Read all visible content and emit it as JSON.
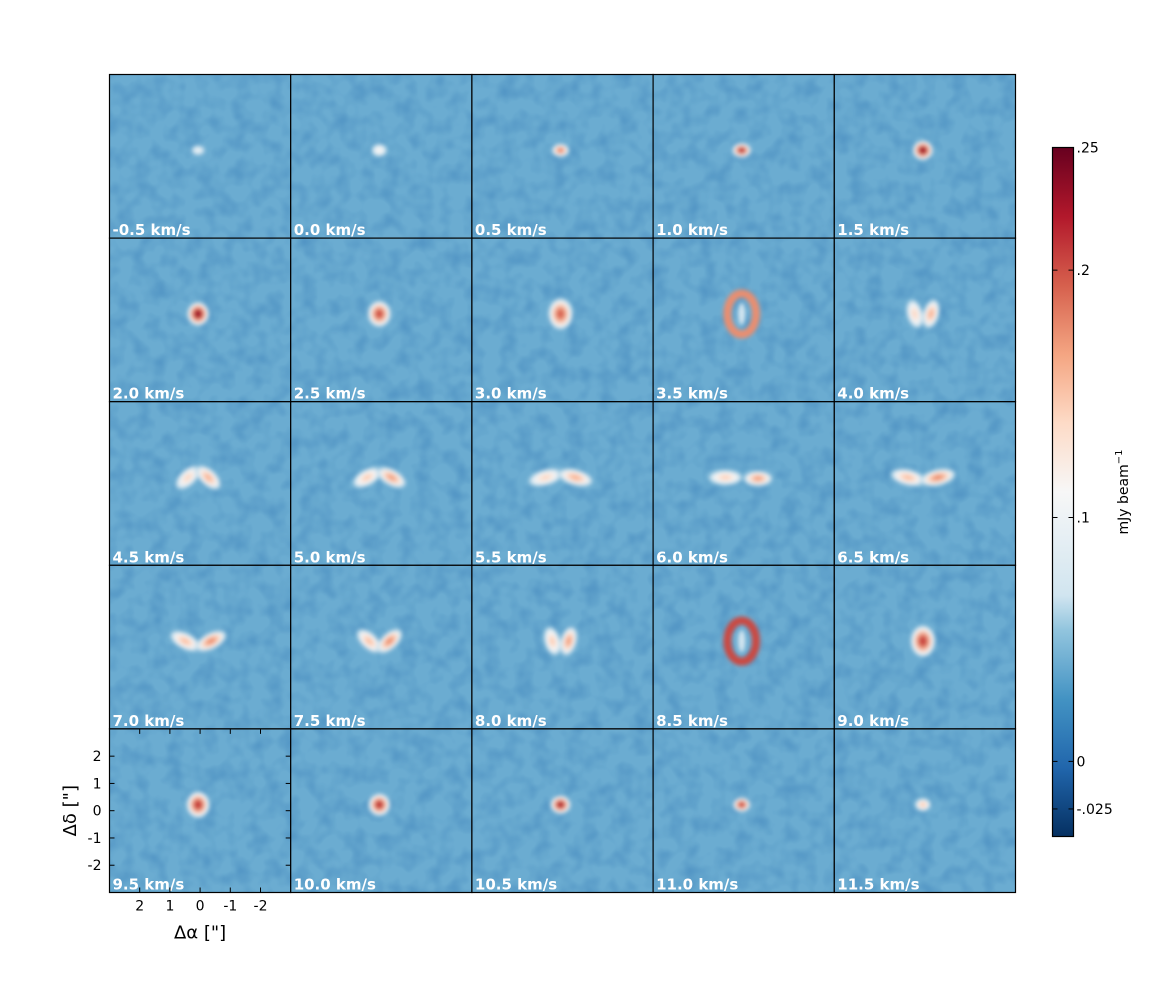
{
  "chart_data": {
    "type": "heatmap",
    "description_kind": "channel-maps",
    "grid": {
      "rows": 5,
      "cols": 5
    },
    "panels": [
      {
        "label": "-0.5 km/s",
        "velocity": -0.5,
        "shape": "blob",
        "peak": 0.09,
        "w": 0.5,
        "h": 0.4
      },
      {
        "label": "0.0 km/s",
        "velocity": 0.0,
        "shape": "blob",
        "peak": 0.11,
        "w": 0.55,
        "h": 0.5
      },
      {
        "label": "0.5 km/s",
        "velocity": 0.5,
        "shape": "blob",
        "peak": 0.19,
        "w": 0.6,
        "h": 0.5
      },
      {
        "label": "1.0 km/s",
        "velocity": 1.0,
        "shape": "blob",
        "peak": 0.23,
        "w": 0.65,
        "h": 0.55
      },
      {
        "label": "1.5 km/s",
        "velocity": 1.5,
        "shape": "blob",
        "peak": 0.245,
        "w": 0.7,
        "h": 0.75
      },
      {
        "label": "2.0 km/s",
        "velocity": 2.0,
        "shape": "blob",
        "peak": 0.245,
        "w": 0.75,
        "h": 0.9
      },
      {
        "label": "2.5 km/s",
        "velocity": 2.5,
        "shape": "blob",
        "peak": 0.21,
        "w": 0.8,
        "h": 1.0
      },
      {
        "label": "3.0 km/s",
        "velocity": 3.0,
        "shape": "blob",
        "peak": 0.2,
        "w": 0.85,
        "h": 1.2
      },
      {
        "label": "3.5 km/s",
        "velocity": 3.5,
        "shape": "ring",
        "peak": 0.17,
        "w": 0.95,
        "h": 1.5
      },
      {
        "label": "4.0 km/s",
        "velocity": 4.0,
        "shape": "arcs_v",
        "peak": 0.16,
        "w": 1.2,
        "h": 1.6
      },
      {
        "label": "4.5 km/s",
        "velocity": 4.5,
        "shape": "arcs_n",
        "peak": 0.16,
        "w": 1.5,
        "h": 1.4
      },
      {
        "label": "5.0 km/s",
        "velocity": 5.0,
        "shape": "arcs_n",
        "peak": 0.17,
        "w": 1.8,
        "h": 1.0
      },
      {
        "label": "5.5 km/s",
        "velocity": 5.5,
        "shape": "arcs_n",
        "peak": 0.16,
        "w": 2.2,
        "h": 0.6
      },
      {
        "label": "6.0 km/s",
        "velocity": 6.0,
        "shape": "bar",
        "peak": 0.17,
        "w": 2.4,
        "h": 0.3
      },
      {
        "label": "6.5 km/s",
        "velocity": 6.5,
        "shape": "arcs_u",
        "peak": 0.18,
        "w": 2.2,
        "h": 0.5
      },
      {
        "label": "7.0 km/s",
        "velocity": 7.0,
        "shape": "arcs_u",
        "peak": 0.18,
        "w": 1.9,
        "h": 1.0
      },
      {
        "label": "7.5 km/s",
        "velocity": 7.5,
        "shape": "arcs_u",
        "peak": 0.18,
        "w": 1.5,
        "h": 1.4
      },
      {
        "label": "8.0 km/s",
        "velocity": 8.0,
        "shape": "arcs_v",
        "peak": 0.17,
        "w": 1.2,
        "h": 1.6
      },
      {
        "label": "8.5 km/s",
        "velocity": 8.5,
        "shape": "ring",
        "peak": 0.2,
        "w": 0.95,
        "h": 1.5
      },
      {
        "label": "9.0 km/s",
        "velocity": 9.0,
        "shape": "blob",
        "peak": 0.215,
        "w": 0.85,
        "h": 1.2
      },
      {
        "label": "9.5 km/s",
        "velocity": 9.5,
        "shape": "blob",
        "peak": 0.22,
        "w": 0.8,
        "h": 1.0
      },
      {
        "label": "10.0 km/s",
        "velocity": 10.0,
        "shape": "blob",
        "peak": 0.225,
        "w": 0.75,
        "h": 0.85
      },
      {
        "label": "10.5 km/s",
        "velocity": 10.5,
        "shape": "blob",
        "peak": 0.235,
        "w": 0.7,
        "h": 0.7
      },
      {
        "label": "11.0 km/s",
        "velocity": 11.0,
        "shape": "blob",
        "peak": 0.22,
        "w": 0.6,
        "h": 0.55
      },
      {
        "label": "11.5 km/s",
        "velocity": 11.5,
        "shape": "blob",
        "peak": 0.15,
        "w": 0.55,
        "h": 0.5
      }
    ],
    "xaxis": {
      "label": "Δα [\"]",
      "ticks": [
        2,
        1,
        0,
        -1,
        -2
      ],
      "tick_labels": [
        "2",
        "1",
        "0",
        "-1",
        "-2"
      ],
      "range": [
        3,
        -3
      ]
    },
    "yaxis": {
      "label": "Δδ [\"]",
      "ticks": [
        2,
        1,
        0,
        -1,
        -2
      ],
      "tick_labels": [
        "2",
        "1",
        "0",
        "-1",
        "-2"
      ],
      "range": [
        -3,
        3
      ]
    },
    "colorbar": {
      "label": "mJy beam",
      "label_exponent": "−1",
      "range": [
        -0.05,
        0.25
      ],
      "ticks": [
        0.25,
        0.2,
        0.1,
        0,
        -0.025
      ],
      "tick_labels": [
        ".25",
        ".2",
        ".1",
        "0",
        "-.025"
      ],
      "colormap": [
        "#053061",
        "#2166ac",
        "#4393c3",
        "#92c5de",
        "#d1e5f0",
        "#f7f7f7",
        "#fddbc7",
        "#f4a582",
        "#d6604d",
        "#b2182b",
        "#67001f"
      ],
      "colormap_positions": [
        0.0,
        0.1,
        0.2,
        0.3,
        0.35,
        0.5,
        0.6,
        0.7,
        0.8,
        0.9,
        1.0
      ]
    },
    "background_level": 0.025
  }
}
